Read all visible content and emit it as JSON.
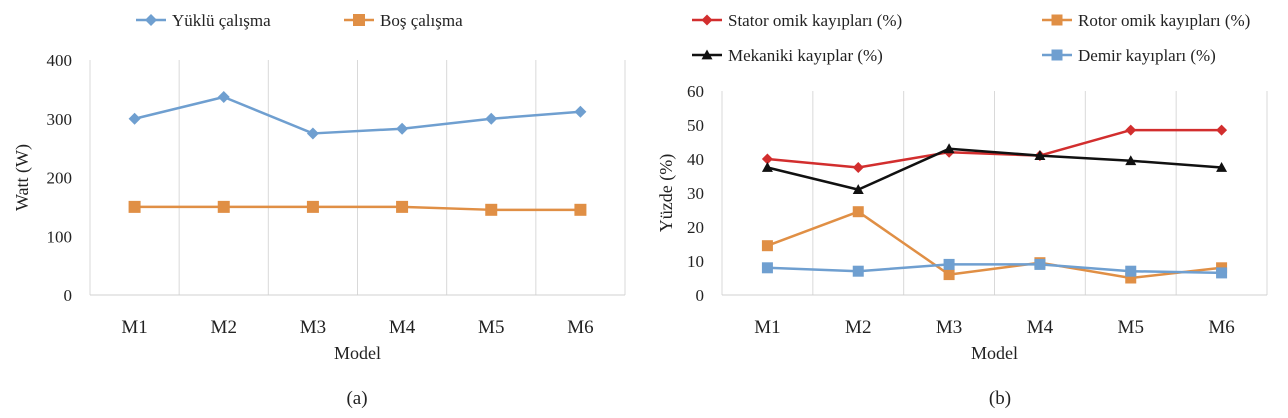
{
  "chart_data": [
    {
      "id": "a",
      "type": "line",
      "caption": "(a)",
      "xlabel": "Model",
      "ylabel": "Watt (W)",
      "categories": [
        "M1",
        "M2",
        "M3",
        "M4",
        "M5",
        "M6"
      ],
      "ylim": [
        0,
        400
      ],
      "yticks": [
        "0",
        "100",
        "200",
        "300",
        "400"
      ],
      "grid": "vertical",
      "legend_position": "top",
      "series": [
        {
          "name": "Yüklü çalışma",
          "color": "#6f9fd0",
          "marker": "diamond",
          "values": [
            300,
            337,
            275,
            283,
            300,
            312
          ]
        },
        {
          "name": "Boş çalışma",
          "color": "#e08f45",
          "marker": "square",
          "values": [
            150,
            150,
            150,
            150,
            145,
            145
          ]
        }
      ]
    },
    {
      "id": "b",
      "type": "line",
      "caption": "(b)",
      "xlabel": "Model",
      "ylabel": "Yüzde (%)",
      "categories": [
        "M1",
        "M2",
        "M3",
        "M4",
        "M5",
        "M6"
      ],
      "ylim": [
        0,
        60
      ],
      "yticks": [
        "0",
        "10",
        "20",
        "30",
        "40",
        "50",
        "60"
      ],
      "grid": "vertical",
      "legend_position": "top",
      "series": [
        {
          "name": "Stator omik  kayıpları (%)",
          "color": "#d22e2e",
          "marker": "diamond",
          "values": [
            40,
            37.5,
            42,
            41,
            48.5,
            48.5
          ]
        },
        {
          "name": "Rotor omik  kayıpları (%)",
          "color": "#e08f45",
          "marker": "square",
          "values": [
            14.5,
            24.5,
            6,
            9.5,
            5,
            8
          ]
        },
        {
          "name": "Mekaniki kayıplar (%)",
          "color": "#111111",
          "marker": "triangle",
          "values": [
            37.5,
            31,
            43,
            41,
            39.5,
            37.5
          ]
        },
        {
          "name": "Demir kayıpları  (%)",
          "color": "#6f9fd0",
          "marker": "square",
          "values": [
            8,
            7,
            9,
            9,
            7,
            6.5
          ]
        }
      ]
    }
  ]
}
